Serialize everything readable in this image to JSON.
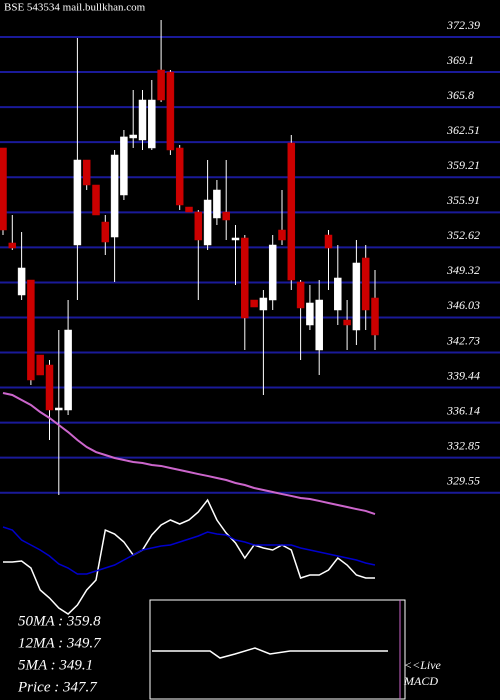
{
  "chart_data": {
    "type": "candlestick",
    "title": "BSE 543534 mail.bullkhan.com",
    "ylim": [
      329.34,
      375.87
    ],
    "yticks": [
      372.39,
      369.1,
      365.8,
      362.51,
      359.21,
      355.91,
      352.62,
      349.32,
      346.03,
      342.73,
      339.44,
      336.14,
      332.85,
      329.55
    ],
    "open": [
      361.96,
      353.03,
      348.14,
      349.55,
      342.5,
      341.56,
      337.33,
      337.33,
      352.84,
      360.83,
      358.48,
      355.0,
      353.59,
      357.54,
      362.9,
      362.71,
      361.96,
      369.29,
      369.1,
      361.96,
      356.41,
      355.94,
      352.84,
      355.38,
      355.94,
      353.31,
      353.5,
      347.67,
      346.73,
      347.67,
      354.25,
      362.43,
      349.36,
      345.32,
      342.97,
      353.78,
      346.73,
      345.79,
      344.85,
      351.62,
      347.86
    ],
    "high": [
      361.96,
      355.66,
      354.06,
      349.55,
      342.5,
      342.03,
      344.85,
      347.67,
      372.3,
      360.83,
      358.48,
      355.66,
      361.77,
      363.65,
      367.41,
      367.41,
      368.35,
      373.99,
      369.29,
      362.24,
      356.41,
      356.13,
      360.83,
      358.95,
      360.83,
      354.72,
      353.78,
      347.67,
      348.61,
      353.78,
      358.01,
      363.18,
      349.55,
      349.08,
      349.55,
      354.25,
      352.84,
      347.67,
      353.31,
      352.84,
      350.49
    ],
    "low": [
      353.78,
      352.37,
      347.67,
      339.68,
      340.62,
      334.51,
      329.34,
      336.86,
      347.67,
      358.01,
      355.66,
      351.9,
      349.36,
      357.07,
      361.96,
      361.77,
      361.77,
      366.28,
      361.3,
      356.13,
      355.94,
      347.67,
      352.37,
      354.72,
      353.31,
      349.08,
      342.97,
      347.01,
      338.74,
      346.73,
      352.84,
      348.61,
      342.03,
      344.85,
      340.62,
      348.61,
      345.32,
      342.97,
      343.44,
      344.85,
      342.97
    ],
    "close": [
      354.25,
      352.56,
      350.68,
      340.15,
      340.62,
      337.33,
      337.52,
      344.85,
      360.83,
      358.48,
      355.66,
      353.12,
      361.3,
      363.0,
      363.18,
      366.47,
      366.47,
      366.47,
      361.77,
      356.6,
      355.94,
      353.31,
      357.07,
      358.01,
      355.19,
      353.5,
      345.98,
      347.01,
      347.86,
      352.84,
      353.31,
      349.55,
      346.92,
      347.39,
      347.67,
      352.56,
      349.74,
      345.32,
      351.15,
      346.73,
      344.38
    ],
    "up_color": "#ffffff",
    "down_color": "#cc0000",
    "ma_color": "#cc66cc",
    "ma": [
      338.93,
      338.74,
      338.27,
      337.8,
      337.14,
      336.58,
      335.92,
      335.26,
      334.51,
      333.85,
      333.38,
      333.1,
      332.82,
      332.63,
      332.44,
      332.35,
      332.16,
      332.07,
      331.88,
      331.69,
      331.5,
      331.31,
      331.13,
      330.94,
      330.75,
      330.47,
      330.28,
      330.0,
      329.81,
      329.62,
      329.43,
      329.25,
      329.06,
      328.96,
      328.78,
      328.59,
      328.4,
      328.21,
      328.02,
      327.84,
      327.55
    ],
    "indicator_ylim": [
      -20,
      105
    ],
    "indicator_series": [
      {
        "color": "#ffffff",
        "values": [
          38,
          38,
          39,
          32,
          10,
          2,
          -8,
          -14,
          -5,
          10,
          20,
          70,
          66,
          58,
          45,
          50,
          65,
          75,
          80,
          76,
          80,
          88,
          100,
          80,
          67,
          57,
          42,
          55,
          52,
          50,
          55,
          50,
          22,
          25,
          25,
          30,
          42,
          35,
          25,
          22,
          22
        ]
      },
      {
        "color": "#0000cc",
        "values": [
          73,
          70,
          60,
          55,
          50,
          44,
          36,
          32,
          26,
          26,
          29,
          32,
          35,
          40,
          45,
          50,
          52,
          54,
          55,
          58,
          61,
          64,
          68,
          66,
          65,
          60,
          58,
          55,
          55,
          55,
          55,
          55,
          52,
          50,
          48,
          46,
          44,
          42,
          40,
          37,
          35
        ]
      }
    ],
    "grid": true,
    "grid_color": "#1a1a99",
    "legend": [
      "50MA : 359.8",
      "12MA : 349.7",
      "5MA : 349.1",
      "Price   : 347.7"
    ],
    "macd_label": [
      "<<Live",
      "MACD"
    ]
  }
}
